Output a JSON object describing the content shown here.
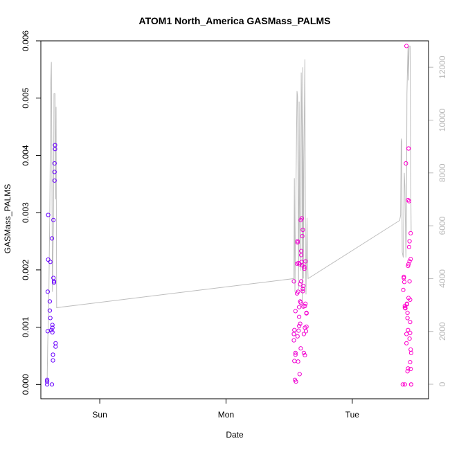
{
  "chart_data": {
    "type": "scatter",
    "title": "ATOM1 North_America GASMass_PALMS",
    "xlabel": "Date",
    "ylabel": "GASMass_PALMS",
    "x_unit": "hours since Sat 00:00",
    "xlim": [
      12.8,
      86.5
    ],
    "ylim": [
      -0.00025,
      0.006
    ],
    "y2lim": [
      -550,
      13000
    ],
    "x_ticks": [
      {
        "value": 24,
        "label": "Sun"
      },
      {
        "value": 48,
        "label": "Mon"
      },
      {
        "value": 72,
        "label": "Tue"
      }
    ],
    "y_ticks": [
      {
        "value": 0,
        "label": "0.000"
      },
      {
        "value": 0.001,
        "label": "0.001"
      },
      {
        "value": 0.002,
        "label": "0.002"
      },
      {
        "value": 0.003,
        "label": "0.003"
      },
      {
        "value": 0.004,
        "label": "0.004"
      },
      {
        "value": 0.005,
        "label": "0.005"
      },
      {
        "value": 0.006,
        "label": "0.006"
      }
    ],
    "y2_ticks": [
      {
        "value": 0,
        "label": "0"
      },
      {
        "value": 2000,
        "label": "2000"
      },
      {
        "value": 4000,
        "label": "4000"
      },
      {
        "value": 6000,
        "label": "6000"
      },
      {
        "value": 8000,
        "label": "8000"
      },
      {
        "value": 10000,
        "label": "10000"
      },
      {
        "value": 12000,
        "label": "12000"
      }
    ],
    "grid": false,
    "colors": {
      "early": "#6600ff",
      "late": "#ff00cc",
      "line": "#bdbdbd"
    },
    "series": [
      {
        "type": "scatter",
        "marker": "open-circle",
        "points": [
          [
            14.0,
            0.0
          ],
          [
            14.0,
            5e-05
          ],
          [
            14.0,
            8e-05
          ],
          [
            14.1,
            0.00093
          ],
          [
            14.1,
            0.00162
          ],
          [
            14.2,
            0.00218
          ],
          [
            14.2,
            0.00296
          ],
          [
            14.5,
            0.00145
          ],
          [
            14.5,
            0.00129
          ],
          [
            14.6,
            0.00116
          ],
          [
            14.6,
            0.00214
          ],
          [
            14.8,
            0.00095
          ],
          [
            14.9,
            0.00255
          ],
          [
            15.0,
            0.00104
          ],
          [
            15.0,
            0.00099
          ],
          [
            15.0,
            0.00091
          ],
          [
            15.1,
            0.00042
          ],
          [
            15.1,
            0.00052
          ],
          [
            15.2,
            0.00186
          ],
          [
            15.2,
            0.00287
          ],
          [
            15.3,
            0.0018
          ],
          [
            15.3,
            0.00178
          ],
          [
            15.4,
            0.00371
          ],
          [
            15.4,
            0.00356
          ],
          [
            15.4,
            0.00386
          ],
          [
            15.5,
            0.00418
          ],
          [
            15.5,
            0.00411
          ],
          [
            15.6,
            0.00072
          ],
          [
            15.6,
            0.00066
          ],
          [
            14.9,
            0.0
          ]
        ]
      },
      {
        "type": "scatter",
        "marker": "open-circle",
        "points": [
          [
            60.9,
            0.0018
          ],
          [
            60.9,
            0.00077
          ],
          [
            60.9,
            0.00088
          ],
          [
            61.0,
            0.00095
          ],
          [
            61.0,
            0.00041
          ],
          [
            61.1,
            8e-05
          ],
          [
            61.2,
            0.00055
          ],
          [
            61.2,
            0.00052
          ],
          [
            61.2,
            0.00128
          ],
          [
            61.3,
            5e-05
          ],
          [
            61.5,
            0.00159
          ],
          [
            61.5,
            0.00211
          ],
          [
            61.6,
            0.00248
          ],
          [
            61.6,
            0.0025
          ],
          [
            61.6,
            0.00084
          ],
          [
            61.7,
            0.0004
          ],
          [
            61.7,
            0.00162
          ],
          [
            61.8,
            0.00212
          ],
          [
            61.8,
            0.00094
          ],
          [
            61.9,
            0.00102
          ],
          [
            61.9,
            0.00135
          ],
          [
            61.9,
            0.00118
          ],
          [
            62.0,
            0.0021
          ],
          [
            62.0,
            0.00018
          ],
          [
            62.1,
            0.00145
          ],
          [
            62.1,
            0.00106
          ],
          [
            62.2,
            0.00063
          ],
          [
            62.2,
            0.00143
          ],
          [
            62.2,
            0.00287
          ],
          [
            62.3,
            0.00226
          ],
          [
            62.3,
            0.00233
          ],
          [
            62.4,
            0.0029
          ],
          [
            62.4,
            0.00214
          ],
          [
            62.5,
            0.00208
          ],
          [
            62.5,
            0.00259
          ],
          [
            62.6,
            0.0027
          ],
          [
            62.6,
            0.00167
          ],
          [
            62.6,
            0.00163
          ],
          [
            62.7,
            0.00172
          ],
          [
            62.7,
            0.00136
          ],
          [
            62.8,
            0.00088
          ],
          [
            62.8,
            0.00055
          ],
          [
            62.9,
            0.00205
          ],
          [
            62.9,
            0.00202
          ],
          [
            63.0,
            0.00137
          ],
          [
            63.0,
            0.00099
          ],
          [
            63.0,
            0.00051
          ],
          [
            63.1,
            0.00215
          ],
          [
            63.1,
            0.00141
          ],
          [
            63.2,
            0.00093
          ],
          [
            63.3,
            0.00125
          ],
          [
            63.3,
            0.00101
          ],
          [
            63.3,
            0.00124
          ],
          [
            62.3,
            0.0018
          ],
          [
            62.1,
            0.00175
          ]
        ]
      },
      {
        "type": "scatter",
        "marker": "open-circle",
        "points": [
          [
            81.6,
            0.0
          ],
          [
            81.7,
            0.00165
          ],
          [
            81.8,
            0.00188
          ],
          [
            81.8,
            0.00186
          ],
          [
            81.9,
            0.00179
          ],
          [
            82.0,
            0.00134
          ],
          [
            82.1,
            0.00133
          ],
          [
            82.2,
            0.00386
          ],
          [
            82.3,
            0.00591
          ],
          [
            82.3,
            0.00088
          ],
          [
            82.3,
            0.00072
          ],
          [
            82.4,
            0.0014
          ],
          [
            82.4,
            0.00141
          ],
          [
            82.5,
            0.00125
          ],
          [
            82.5,
            0.00116
          ],
          [
            82.5,
            0.00023
          ],
          [
            82.6,
            0.00322
          ],
          [
            82.6,
            0.00095
          ],
          [
            82.6,
            0.00028
          ],
          [
            82.7,
            0.00412
          ],
          [
            82.7,
            0.00412
          ],
          [
            82.7,
            0.0021
          ],
          [
            82.7,
            0.00151
          ],
          [
            82.8,
            0.0032
          ],
          [
            82.8,
            0.0024
          ],
          [
            82.9,
            0.0008
          ],
          [
            82.9,
            0.0025
          ],
          [
            82.9,
            0.00215
          ],
          [
            82.9,
            0.0018
          ],
          [
            83.0,
            0.00148
          ],
          [
            83.0,
            0.00109
          ],
          [
            83.0,
            0.0009
          ],
          [
            83.0,
            0.00039
          ],
          [
            83.1,
            0.00264
          ],
          [
            83.1,
            0.00219
          ],
          [
            83.1,
            0.00061
          ],
          [
            83.1,
            0.00027
          ],
          [
            83.2,
            0.00055
          ],
          [
            83.2,
            0.0
          ],
          [
            83.2,
            0.0
          ],
          [
            82.0,
            0.0
          ],
          [
            82.0,
            0.00137
          ],
          [
            82.6,
            0.00207
          ]
        ]
      },
      {
        "type": "line",
        "axis": "right",
        "points": [
          [
            14.0,
            100
          ],
          [
            14.1,
            1500
          ],
          [
            14.3,
            3000
          ],
          [
            14.5,
            6500
          ],
          [
            14.7,
            11500
          ],
          [
            14.8,
            12200
          ],
          [
            14.9,
            8000
          ],
          [
            15.0,
            3500
          ],
          [
            15.2,
            6000
          ],
          [
            15.3,
            11000
          ],
          [
            15.5,
            11000
          ],
          [
            15.6,
            7000
          ],
          [
            15.7,
            10500
          ],
          [
            15.8,
            2900
          ],
          [
            60.9,
            4000
          ],
          [
            61.0,
            7800
          ],
          [
            61.1,
            3500
          ],
          [
            61.3,
            7400
          ],
          [
            61.5,
            11100
          ],
          [
            61.6,
            10900
          ],
          [
            61.7,
            7200
          ],
          [
            61.8,
            3600
          ],
          [
            61.9,
            10700
          ],
          [
            62.0,
            6000
          ],
          [
            62.1,
            4300
          ],
          [
            62.2,
            8100
          ],
          [
            62.3,
            11800
          ],
          [
            62.4,
            9800
          ],
          [
            62.5,
            3000
          ],
          [
            62.6,
            12000
          ],
          [
            62.7,
            4000
          ],
          [
            62.8,
            8400
          ],
          [
            63.0,
            12300
          ],
          [
            63.1,
            5000
          ],
          [
            63.2,
            3400
          ],
          [
            63.3,
            5000
          ],
          [
            63.4,
            6300
          ],
          [
            63.5,
            4800
          ],
          [
            63.6,
            4000
          ],
          [
            81.0,
            6200
          ],
          [
            81.2,
            6400
          ],
          [
            81.3,
            9300
          ],
          [
            81.4,
            9200
          ],
          [
            81.5,
            5000
          ],
          [
            81.6,
            4900
          ],
          [
            81.7,
            4800
          ],
          [
            81.9,
            8000
          ],
          [
            82.0,
            7500
          ],
          [
            82.2,
            4800
          ],
          [
            82.3,
            6000
          ],
          [
            82.4,
            11000
          ],
          [
            82.5,
            12000
          ],
          [
            82.6,
            12800
          ],
          [
            82.7,
            11500
          ],
          [
            82.8,
            12800
          ],
          [
            83.0,
            12800
          ],
          [
            83.1,
            8000
          ],
          [
            83.2,
            5800
          ]
        ]
      }
    ]
  }
}
